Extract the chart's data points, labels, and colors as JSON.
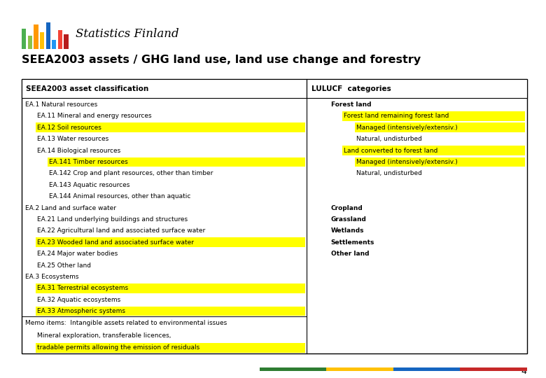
{
  "title": "SEEA2003 assets / GHG land use, land use change and forestry",
  "page_number": "4",
  "header_logo_text": "Statistics Finland",
  "table": {
    "col1_header": "SEEA2003 asset classification",
    "col2_header": "LULUCF  categories",
    "rows": [
      {
        "text": "EA.1 Natural resources",
        "indent": 0,
        "bold": false,
        "highlight": false
      },
      {
        "text": "EA.11 Mineral and energy resources",
        "indent": 1,
        "bold": false,
        "highlight": false
      },
      {
        "text": "EA.12 Soil resources",
        "indent": 1,
        "bold": false,
        "highlight": true
      },
      {
        "text": "EA.13 Water resources",
        "indent": 1,
        "bold": false,
        "highlight": false
      },
      {
        "text": "EA.14 Biological resources",
        "indent": 1,
        "bold": false,
        "highlight": false
      },
      {
        "text": "EA.141 Timber resources",
        "indent": 2,
        "bold": false,
        "highlight": true
      },
      {
        "text": "EA.142 Crop and plant resources, other than timber",
        "indent": 2,
        "bold": false,
        "highlight": false
      },
      {
        "text": "EA.143 Aquatic resources",
        "indent": 2,
        "bold": false,
        "highlight": false
      },
      {
        "text": "EA.144 Animal resources, other than aquatic",
        "indent": 2,
        "bold": false,
        "highlight": false
      },
      {
        "text": "EA.2 Land and surface water",
        "indent": 0,
        "bold": false,
        "highlight": false
      },
      {
        "text": "EA.21 Land underlying buildings and structures",
        "indent": 1,
        "bold": false,
        "highlight": false
      },
      {
        "text": "EA.22 Agricultural land and associated surface water",
        "indent": 1,
        "bold": false,
        "highlight": false
      },
      {
        "text": "EA.23 Wooded land and associated surface water",
        "indent": 1,
        "bold": false,
        "highlight": true
      },
      {
        "text": "EA.24 Major water bodies",
        "indent": 1,
        "bold": false,
        "highlight": false
      },
      {
        "text": "EA.25 Other land",
        "indent": 1,
        "bold": false,
        "highlight": false
      },
      {
        "text": "EA.3 Ecosystems",
        "indent": 0,
        "bold": false,
        "highlight": false
      },
      {
        "text": "EA.31 Terrestrial ecosystems",
        "indent": 1,
        "bold": false,
        "highlight": true
      },
      {
        "text": "EA.32 Aquatic ecosystems",
        "indent": 1,
        "bold": false,
        "highlight": false
      },
      {
        "text": "EA.33 Atmospheric systems",
        "indent": 1,
        "bold": false,
        "highlight": true
      }
    ],
    "memo_rows": [
      {
        "text": "Memo items:  Intangible assets related to environmental issues",
        "indent": 0,
        "highlight": false
      },
      {
        "text": "Mineral exploration, transferable licences,",
        "indent": 1,
        "highlight": false
      },
      {
        "text": "tradable permits allowing the emission of residuals",
        "indent": 1,
        "highlight": true
      }
    ],
    "col2_rows": [
      {
        "text": "Forest land",
        "indent": 1,
        "bold": true,
        "highlight": false,
        "row_index": 0
      },
      {
        "text": "Forest land remaining forest land",
        "indent": 2,
        "bold": false,
        "highlight": true,
        "row_index": 1
      },
      {
        "text": "Managed (intensively/extensiv.)",
        "indent": 3,
        "bold": false,
        "highlight": true,
        "row_index": 2
      },
      {
        "text": "Natural, undisturbed",
        "indent": 3,
        "bold": false,
        "highlight": false,
        "row_index": 3
      },
      {
        "text": "Land converted to forest land",
        "indent": 2,
        "bold": false,
        "highlight": true,
        "row_index": 4
      },
      {
        "text": "Managed (intensively/extensiv.)",
        "indent": 3,
        "bold": false,
        "highlight": true,
        "row_index": 5
      },
      {
        "text": "Natural, undisturbed",
        "indent": 3,
        "bold": false,
        "highlight": false,
        "row_index": 6
      },
      {
        "text": "Cropland",
        "indent": 1,
        "bold": true,
        "highlight": false,
        "row_index": 9
      },
      {
        "text": "Grassland",
        "indent": 1,
        "bold": true,
        "highlight": false,
        "row_index": 10
      },
      {
        "text": "Wetlands",
        "indent": 1,
        "bold": true,
        "highlight": false,
        "row_index": 11
      },
      {
        "text": "Settlements",
        "indent": 1,
        "bold": true,
        "highlight": false,
        "row_index": 12
      },
      {
        "text": "Other land",
        "indent": 1,
        "bold": true,
        "highlight": false,
        "row_index": 13
      }
    ]
  },
  "highlight_color": "#FFFF00",
  "table_border_color": "#000000",
  "footer_bar_colors": [
    "#2E7D32",
    "#FFC107",
    "#1565C0",
    "#C62828"
  ],
  "background_color": "#FFFFFF",
  "text_color": "#000000",
  "font_size": 6.5,
  "header_font_size": 7.5,
  "title_font_size": 11.5
}
